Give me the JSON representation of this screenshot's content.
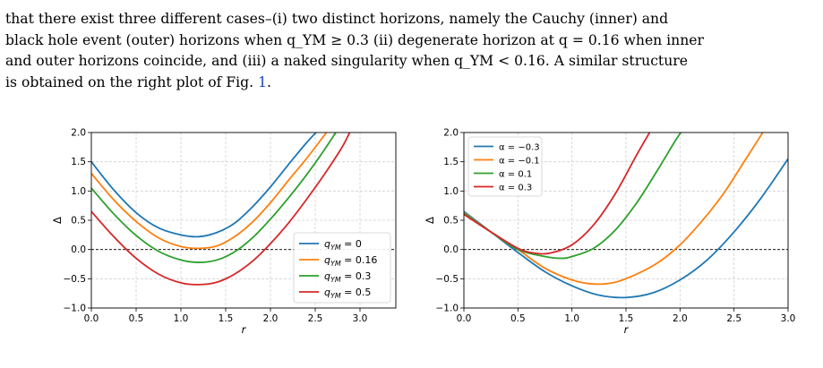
{
  "paragraph": {
    "line1": "that there exist three different cases–(i) two distinct horizons, namely the Cauchy (inner) and",
    "line2": "black hole event (outer) horizons when q_YM ≥ 0.3 (ii) degenerate horizon at q = 0.16 when inner",
    "line3": "and outer horizons coincide, and (iii) a naked singularity when q_YM < 0.16. A similar structure",
    "line4_prefix": "is obtained on the right plot of Fig. ",
    "fig_ref": "1",
    "line4_suffix": "."
  },
  "chart_data": [
    {
      "type": "line",
      "xlabel": "r",
      "ylabel": "Δ",
      "xlim": [
        0,
        3.4
      ],
      "ylim": [
        -1.0,
        2.0
      ],
      "xticks": [
        "0.0",
        "0.5",
        "1.0",
        "1.5",
        "2.0",
        "2.5",
        "3.0"
      ],
      "yticks": [
        "−1.0",
        "−0.5",
        "0.0",
        "0.5",
        "1.0",
        "1.5",
        "2.0"
      ],
      "grid": true,
      "legend": "lower-right",
      "reference_line_y": 0,
      "series": [
        {
          "name": "q_YM = 0",
          "legend_label": "q_{YM} = 0",
          "color": "#1f77b4",
          "x": [
            0.0,
            0.25,
            0.5,
            0.75,
            1.0,
            1.2,
            1.4,
            1.6,
            1.8,
            2.0,
            2.2,
            2.4,
            2.6
          ],
          "y": [
            1.5,
            1.02,
            0.63,
            0.37,
            0.25,
            0.22,
            0.29,
            0.45,
            0.73,
            1.07,
            1.45,
            1.82,
            2.15
          ]
        },
        {
          "name": "q_YM = 0.16",
          "legend_label": "q_{YM} = 0.16",
          "color": "#ff7f0e",
          "x": [
            0.0,
            0.25,
            0.5,
            0.75,
            1.0,
            1.2,
            1.4,
            1.6,
            1.8,
            2.0,
            2.2,
            2.4,
            2.6,
            2.7
          ],
          "y": [
            1.3,
            0.85,
            0.48,
            0.2,
            0.05,
            0.02,
            0.06,
            0.22,
            0.47,
            0.8,
            1.18,
            1.55,
            1.95,
            2.15
          ]
        },
        {
          "name": "q_YM = 0.3",
          "legend_label": "q_{YM} = 0.3",
          "color": "#2ca02c",
          "x": [
            0.0,
            0.25,
            0.5,
            0.75,
            1.0,
            1.2,
            1.4,
            1.6,
            1.8,
            2.0,
            2.2,
            2.4,
            2.6,
            2.75
          ],
          "y": [
            1.05,
            0.61,
            0.24,
            -0.03,
            -0.18,
            -0.22,
            -0.18,
            -0.04,
            0.2,
            0.52,
            0.88,
            1.27,
            1.7,
            2.05
          ]
        },
        {
          "name": "q_YM = 0.5",
          "legend_label": "q_{YM} = 0.5",
          "color": "#d62728",
          "x": [
            0.0,
            0.25,
            0.5,
            0.75,
            1.0,
            1.2,
            1.4,
            1.6,
            1.8,
            2.0,
            2.2,
            2.4,
            2.6,
            2.8,
            2.9
          ],
          "y": [
            0.65,
            0.22,
            -0.15,
            -0.42,
            -0.57,
            -0.6,
            -0.56,
            -0.42,
            -0.2,
            0.1,
            0.45,
            0.85,
            1.28,
            1.75,
            2.05
          ]
        }
      ]
    },
    {
      "type": "line",
      "xlabel": "r",
      "ylabel": "Δ",
      "xlim": [
        0,
        3.0
      ],
      "ylim": [
        -1.0,
        2.0
      ],
      "xticks": [
        "0.0",
        "0.5",
        "1.0",
        "1.5",
        "2.0",
        "2.5",
        "3.0"
      ],
      "yticks": [
        "−1.0",
        "−0.5",
        "0.0",
        "0.5",
        "1.0",
        "1.5",
        "2.0"
      ],
      "grid": true,
      "legend": "top-left",
      "reference_line_y": 0,
      "series": [
        {
          "name": "α = −0.3",
          "legend_label": "α = −0.3",
          "color": "#1f77b4",
          "x": [
            0.0,
            0.25,
            0.5,
            0.75,
            1.0,
            1.25,
            1.5,
            1.75,
            2.0,
            2.25,
            2.5,
            2.75,
            3.0
          ],
          "y": [
            0.65,
            0.3,
            -0.05,
            -0.38,
            -0.62,
            -0.78,
            -0.82,
            -0.74,
            -0.52,
            -0.18,
            0.3,
            0.88,
            1.55
          ]
        },
        {
          "name": "α = −0.1",
          "legend_label": "α = −0.1",
          "color": "#ff7f0e",
          "x": [
            0.0,
            0.25,
            0.5,
            0.75,
            1.0,
            1.2,
            1.4,
            1.6,
            1.8,
            2.0,
            2.2,
            2.4,
            2.6,
            2.8
          ],
          "y": [
            0.63,
            0.3,
            0.0,
            -0.32,
            -0.52,
            -0.59,
            -0.56,
            -0.42,
            -0.22,
            0.08,
            0.48,
            0.95,
            1.52,
            2.1
          ]
        },
        {
          "name": "α = 0.1",
          "legend_label": "α = 0.1",
          "color": "#2ca02c",
          "x": [
            0.0,
            0.25,
            0.5,
            0.75,
            0.9,
            1.0,
            1.2,
            1.4,
            1.6,
            1.8,
            2.0,
            2.1
          ],
          "y": [
            0.62,
            0.3,
            0.0,
            -0.12,
            -0.15,
            -0.12,
            0.02,
            0.33,
            0.8,
            1.38,
            1.98,
            2.12
          ]
        },
        {
          "name": "α = 0.3",
          "legend_label": "α = 0.3",
          "color": "#d62728",
          "x": [
            0.0,
            0.25,
            0.5,
            0.65,
            0.8,
            1.0,
            1.2,
            1.4,
            1.6,
            1.75
          ],
          "y": [
            0.6,
            0.3,
            0.02,
            -0.06,
            -0.06,
            0.08,
            0.42,
            0.95,
            1.62,
            2.1
          ]
        }
      ]
    }
  ]
}
